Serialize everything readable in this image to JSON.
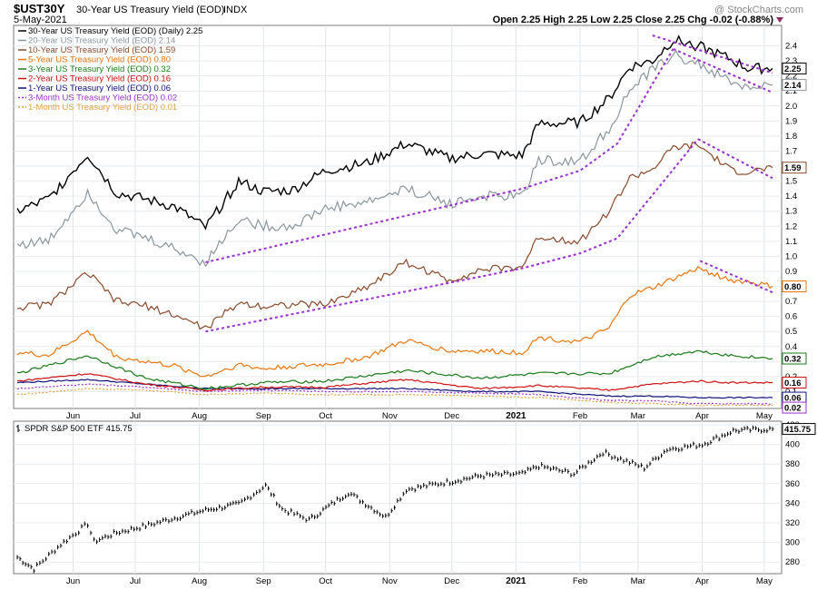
{
  "header": {
    "symbol": "$UST30Y",
    "description": "30-Year US Treasury Yield (EOD)",
    "exchange": "INDX",
    "date": "5-May-2021",
    "ohlc_text": "Open 2.25  High 2.25  Low 2.25  Close 2.25  Chg -0.02 (-0.88%)",
    "watermark": "@ StockCharts.com"
  },
  "colors": {
    "y30": "#000000",
    "y20": "#8a969c",
    "y10": "#8b4a2b",
    "y5": "#e8760f",
    "y3": "#1a7a1a",
    "y2": "#cc1111",
    "y1": "#10107a",
    "m3": "#9b2fd0",
    "m1": "#e0a040",
    "trend": "#9b2fd0"
  },
  "legend": [
    {
      "key": "y30",
      "text": "30-Year US Treasury Yield (EOD) (Daily) 2.25",
      "dash": false
    },
    {
      "key": "y20",
      "text": "20-Year US Treasury Yield (EOD) 2.14",
      "dash": false
    },
    {
      "key": "y10",
      "text": "10-Year US Treasury Yield (EOD) 1.59",
      "dash": false
    },
    {
      "key": "y5",
      "text": "5-Year US Treasury Yield (EOD) 0.80",
      "dash": false
    },
    {
      "key": "y3",
      "text": "3-Year US Treasury Yield (EOD) 0.32",
      "dash": false
    },
    {
      "key": "y2",
      "text": "2-Year US Treasury Yield (EOD) 0.16",
      "dash": false
    },
    {
      "key": "y1",
      "text": "1-Year US Treasury Yield (EOD) 0.06",
      "dash": false
    },
    {
      "key": "m3",
      "text": "3-Month US Treasury Yield (EOD) 0.02",
      "dash": true
    },
    {
      "key": "m1",
      "text": "1-Month US Treasury Yield (EOD) 0.01",
      "dash": true
    }
  ],
  "spy_label": "SPDR S&P 500 ETF 415.75",
  "chart_data": [
    {
      "type": "line",
      "title": "30-Year US Treasury Yield (EOD)",
      "y_range": [
        0.0,
        2.5
      ],
      "y_ticks": [
        "0.1",
        "0.2",
        "0.3",
        "0.4",
        "0.5",
        "0.6",
        "0.7",
        "0.8",
        "0.9",
        "1.0",
        "1.1",
        "1.2",
        "1.3",
        "1.4",
        "1.5",
        "1.6",
        "1.7",
        "1.8",
        "1.9",
        "2.0",
        "2.1",
        "2.2",
        "2.3",
        "2.4"
      ],
      "x_labels": [
        "Jun",
        "Jul",
        "Aug",
        "Sep",
        "Oct",
        "Nov",
        "Dec",
        "2021",
        "Feb",
        "Mar",
        "Apr",
        "May"
      ],
      "date_range": [
        "2020-05-05",
        "2021-05-05"
      ],
      "grid": true,
      "series": [
        {
          "name": "30-Year US Treasury Yield (EOD) (Daily)",
          "key": "y30",
          "last": "2.25",
          "x": [
            "2020-05-05",
            "2020-05-20",
            "2020-06-08",
            "2020-06-22",
            "2020-07-06",
            "2020-07-20",
            "2020-08-04",
            "2020-08-20",
            "2020-09-01",
            "2020-09-15",
            "2020-10-01",
            "2020-10-21",
            "2020-11-09",
            "2020-11-30",
            "2020-12-15",
            "2021-01-04",
            "2021-01-12",
            "2021-02-01",
            "2021-02-15",
            "2021-02-25",
            "2021-03-08",
            "2021-03-18",
            "2021-03-30",
            "2021-04-15",
            "2021-04-23",
            "2021-05-05"
          ],
          "values": [
            1.3,
            1.38,
            1.68,
            1.42,
            1.38,
            1.33,
            1.19,
            1.5,
            1.43,
            1.44,
            1.57,
            1.62,
            1.75,
            1.65,
            1.68,
            1.67,
            1.88,
            1.89,
            2.05,
            2.26,
            2.3,
            2.44,
            2.4,
            2.31,
            2.25,
            2.25
          ]
        },
        {
          "name": "20-Year US Treasury Yield (EOD)",
          "key": "y20",
          "last": "2.14",
          "x": [
            "2020-05-05",
            "2020-05-20",
            "2020-06-08",
            "2020-06-22",
            "2020-07-06",
            "2020-07-20",
            "2020-08-04",
            "2020-08-20",
            "2020-09-01",
            "2020-09-15",
            "2020-10-01",
            "2020-10-21",
            "2020-11-09",
            "2020-11-30",
            "2020-12-15",
            "2021-01-04",
            "2021-01-12",
            "2021-02-01",
            "2021-02-15",
            "2021-02-25",
            "2021-03-08",
            "2021-03-18",
            "2021-03-30",
            "2021-04-15",
            "2021-04-23",
            "2021-05-05"
          ],
          "values": [
            1.08,
            1.1,
            1.43,
            1.18,
            1.12,
            1.05,
            0.96,
            1.25,
            1.2,
            1.2,
            1.32,
            1.36,
            1.45,
            1.35,
            1.4,
            1.4,
            1.64,
            1.63,
            1.85,
            2.1,
            2.24,
            2.34,
            2.28,
            2.16,
            2.12,
            2.14
          ]
        },
        {
          "name": "10-Year US Treasury Yield (EOD)",
          "key": "y10",
          "last": "1.59",
          "x": [
            "2020-05-05",
            "2020-05-20",
            "2020-06-08",
            "2020-06-22",
            "2020-07-06",
            "2020-07-20",
            "2020-08-04",
            "2020-08-20",
            "2020-09-01",
            "2020-09-15",
            "2020-10-01",
            "2020-10-21",
            "2020-11-09",
            "2020-11-30",
            "2020-12-15",
            "2021-01-04",
            "2021-01-12",
            "2021-02-01",
            "2021-02-15",
            "2021-02-25",
            "2021-03-08",
            "2021-03-18",
            "2021-03-30",
            "2021-04-15",
            "2021-04-23",
            "2021-05-05"
          ],
          "values": [
            0.66,
            0.68,
            0.89,
            0.7,
            0.67,
            0.61,
            0.52,
            0.69,
            0.67,
            0.68,
            0.68,
            0.8,
            0.96,
            0.84,
            0.91,
            0.93,
            1.13,
            1.1,
            1.3,
            1.52,
            1.58,
            1.72,
            1.74,
            1.57,
            1.56,
            1.59
          ]
        },
        {
          "name": "5-Year US Treasury Yield (EOD)",
          "key": "y5",
          "last": "0.80",
          "x": [
            "2020-05-05",
            "2020-05-20",
            "2020-06-08",
            "2020-06-22",
            "2020-07-06",
            "2020-07-20",
            "2020-08-04",
            "2020-08-20",
            "2020-09-01",
            "2020-09-15",
            "2020-10-01",
            "2020-10-21",
            "2020-11-09",
            "2020-11-30",
            "2020-12-15",
            "2021-01-04",
            "2021-01-12",
            "2021-02-01",
            "2021-02-15",
            "2021-02-25",
            "2021-03-08",
            "2021-03-18",
            "2021-03-30",
            "2021-04-15",
            "2021-04-23",
            "2021-05-05"
          ],
          "values": [
            0.36,
            0.34,
            0.5,
            0.33,
            0.3,
            0.27,
            0.2,
            0.28,
            0.25,
            0.27,
            0.28,
            0.33,
            0.44,
            0.37,
            0.37,
            0.36,
            0.46,
            0.43,
            0.52,
            0.74,
            0.79,
            0.85,
            0.92,
            0.84,
            0.83,
            0.8
          ]
        },
        {
          "name": "3-Year US Treasury Yield (EOD)",
          "key": "y3",
          "last": "0.32",
          "x": [
            "2020-05-05",
            "2020-06-08",
            "2020-07-06",
            "2020-08-04",
            "2020-09-01",
            "2020-10-01",
            "2020-11-09",
            "2020-12-15",
            "2021-01-12",
            "2021-02-15",
            "2021-03-08",
            "2021-03-30",
            "2021-04-15",
            "2021-05-05"
          ],
          "values": [
            0.22,
            0.34,
            0.19,
            0.12,
            0.16,
            0.17,
            0.24,
            0.19,
            0.22,
            0.22,
            0.33,
            0.37,
            0.34,
            0.32
          ]
        },
        {
          "name": "2-Year US Treasury Yield (EOD)",
          "key": "y2",
          "last": "0.16",
          "x": [
            "2020-05-05",
            "2020-06-08",
            "2020-07-06",
            "2020-08-04",
            "2020-09-01",
            "2020-10-01",
            "2020-11-09",
            "2020-12-15",
            "2021-01-12",
            "2021-02-15",
            "2021-03-08",
            "2021-03-30",
            "2021-04-15",
            "2021-05-05"
          ],
          "values": [
            0.17,
            0.22,
            0.15,
            0.11,
            0.13,
            0.13,
            0.18,
            0.12,
            0.14,
            0.11,
            0.15,
            0.17,
            0.16,
            0.16
          ]
        },
        {
          "name": "1-Year US Treasury Yield (EOD)",
          "key": "y1",
          "last": "0.06",
          "x": [
            "2020-05-05",
            "2020-06-08",
            "2020-07-06",
            "2020-08-04",
            "2020-09-01",
            "2020-10-01",
            "2020-11-09",
            "2020-12-15",
            "2021-01-12",
            "2021-02-15",
            "2021-03-08",
            "2021-03-30",
            "2021-04-15",
            "2021-05-05"
          ],
          "values": [
            0.16,
            0.18,
            0.15,
            0.12,
            0.12,
            0.12,
            0.12,
            0.1,
            0.1,
            0.07,
            0.07,
            0.06,
            0.06,
            0.06
          ]
        },
        {
          "name": "3-Month US Treasury Yield (EOD)",
          "key": "m3",
          "last": "0.02",
          "x": [
            "2020-05-05",
            "2020-06-08",
            "2020-07-06",
            "2020-08-04",
            "2020-09-01",
            "2020-10-01",
            "2020-11-09",
            "2020-12-15",
            "2021-01-12",
            "2021-02-15",
            "2021-03-08",
            "2021-03-30",
            "2021-04-15",
            "2021-05-05"
          ],
          "values": [
            0.12,
            0.15,
            0.13,
            0.1,
            0.11,
            0.1,
            0.1,
            0.09,
            0.08,
            0.04,
            0.04,
            0.02,
            0.02,
            0.02
          ]
        },
        {
          "name": "1-Month US Treasury Yield (EOD)",
          "key": "m1",
          "last": "0.01",
          "x": [
            "2020-05-05",
            "2020-06-08",
            "2020-07-06",
            "2020-08-04",
            "2020-09-01",
            "2020-10-01",
            "2020-11-09",
            "2020-12-15",
            "2021-01-12",
            "2021-02-15",
            "2021-03-08",
            "2021-03-30",
            "2021-04-15",
            "2021-05-05"
          ],
          "values": [
            0.08,
            0.12,
            0.11,
            0.08,
            0.09,
            0.08,
            0.08,
            0.07,
            0.06,
            0.03,
            0.02,
            0.01,
            0.01,
            0.01
          ]
        }
      ],
      "trendlines": [
        {
          "key": "trend",
          "x": [
            "2020-08-04",
            "2021-01-04",
            "2021-02-01",
            "2021-02-19",
            "2021-03-18"
          ],
          "values": [
            0.96,
            1.45,
            1.57,
            1.75,
            2.38
          ]
        },
        {
          "key": "trend",
          "x": [
            "2021-03-18",
            "2021-05-05"
          ],
          "values": [
            2.38,
            2.09
          ]
        },
        {
          "key": "trend",
          "x": [
            "2020-08-04",
            "2021-01-04",
            "2021-02-01",
            "2021-02-19",
            "2021-03-30"
          ],
          "values": [
            0.5,
            0.92,
            1.02,
            1.12,
            1.78
          ]
        },
        {
          "key": "trend",
          "x": [
            "2021-03-30",
            "2021-05-05"
          ],
          "values": [
            1.78,
            1.52
          ]
        },
        {
          "key": "trend",
          "x": [
            "2021-03-31",
            "2021-05-05"
          ],
          "values": [
            0.97,
            0.76
          ]
        },
        {
          "key": "trend",
          "x": [
            "2021-03-08",
            "2021-05-05"
          ],
          "values": [
            2.47,
            2.22
          ]
        }
      ]
    },
    {
      "type": "line",
      "title": "SPDR S&P 500 ETF",
      "y_range": [
        270,
        420
      ],
      "y_ticks": [
        "280",
        "300",
        "320",
        "340",
        "360",
        "380",
        "400",
        "420"
      ],
      "x_labels": [
        "Jun",
        "Jul",
        "Aug",
        "Sep",
        "Oct",
        "Nov",
        "Dec",
        "2021",
        "Feb",
        "Mar",
        "Apr",
        "May"
      ],
      "date_range": [
        "2020-05-05",
        "2021-05-05"
      ],
      "grid": true,
      "series": [
        {
          "name": "SPDR S&P 500 ETF",
          "key": "y30",
          "last": "415.75",
          "x": [
            "2020-05-05",
            "2020-05-13",
            "2020-05-26",
            "2020-06-08",
            "2020-06-11",
            "2020-06-22",
            "2020-07-06",
            "2020-07-20",
            "2020-08-04",
            "2020-08-20",
            "2020-09-02",
            "2020-09-10",
            "2020-09-23",
            "2020-10-12",
            "2020-10-30",
            "2020-11-09",
            "2020-11-30",
            "2020-12-15",
            "2021-01-04",
            "2021-01-12",
            "2021-01-29",
            "2021-02-12",
            "2021-03-04",
            "2021-03-15",
            "2021-04-01",
            "2021-04-16",
            "2021-05-05"
          ],
          "values": [
            285,
            273,
            298,
            319,
            301,
            310,
            317,
            325,
            333,
            339,
            358,
            334,
            323,
            351,
            326,
            354,
            362,
            368,
            370,
            378,
            370,
            392,
            376,
            395,
            400,
            414,
            415.75
          ]
        }
      ]
    }
  ]
}
